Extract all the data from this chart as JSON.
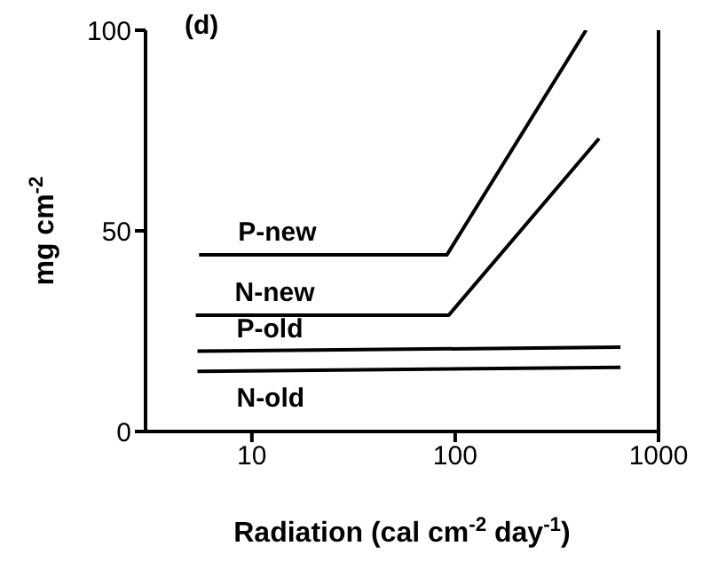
{
  "chart_data": {
    "type": "line",
    "xlabel": "Radiation (cal cm$^{-2}$ day$^{-1}$)",
    "ylabel": "mg cm$^{-2}$",
    "annotations": [
      "(d)"
    ],
    "log": "x",
    "xlim": [
      3,
      1000
    ],
    "xticks": [
      10,
      100,
      1000
    ],
    "ylim": [
      0,
      100
    ],
    "yticks": [
      0,
      50,
      100
    ],
    "marker": "none",
    "line_style": "solid",
    "series": [
      {
        "name": "P-new",
        "color": "#000000",
        "x": [
          5.5,
          91,
          440
        ],
        "values": [
          44,
          44,
          100
        ]
      },
      {
        "name": "N-new",
        "color": "#000000",
        "x": [
          5.3,
          93,
          510
        ],
        "values": [
          29,
          29,
          73
        ]
      },
      {
        "name": "P-old",
        "color": "#000000",
        "x": [
          5.4,
          650
        ],
        "values": [
          20,
          21
        ]
      },
      {
        "name": "N-old",
        "color": "#000000",
        "x": [
          5.4,
          650
        ],
        "values": [
          15,
          16
        ]
      }
    ]
  }
}
